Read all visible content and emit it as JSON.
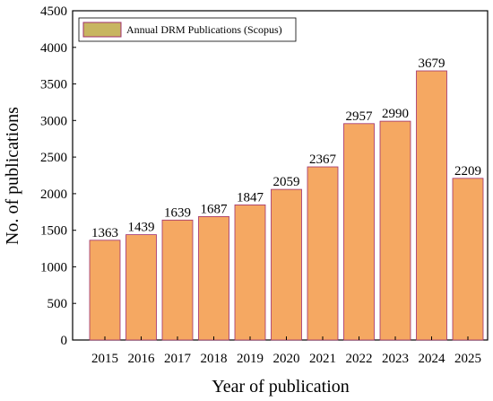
{
  "chart_data": {
    "type": "bar",
    "categories": [
      "2015",
      "2016",
      "2017",
      "2018",
      "2019",
      "2020",
      "2021",
      "2022",
      "2023",
      "2024",
      "2025"
    ],
    "series": [
      {
        "name": "Annual DRM Publications (Scopus)",
        "values": [
          1363,
          1439,
          1639,
          1687,
          1847,
          2059,
          2367,
          2957,
          2990,
          3679,
          2209
        ]
      }
    ],
    "data_labels": [
      "1363",
      "1439",
      "1639",
      "1687",
      "1847",
      "2059",
      "2367",
      "2957",
      "2990",
      "3679",
      "2209"
    ],
    "y_ticks": [
      0,
      500,
      1000,
      1500,
      2000,
      2500,
      3000,
      3500,
      4000,
      4500
    ],
    "xlabel": "Year of publication",
    "ylabel": "No. of publications",
    "ylim": [
      0,
      4500
    ],
    "grid": false,
    "legend_position": "top-left",
    "bar_color": "#F5A862",
    "bar_edge_color": "#A0306E",
    "legend_swatch_color": "#C8B560"
  }
}
